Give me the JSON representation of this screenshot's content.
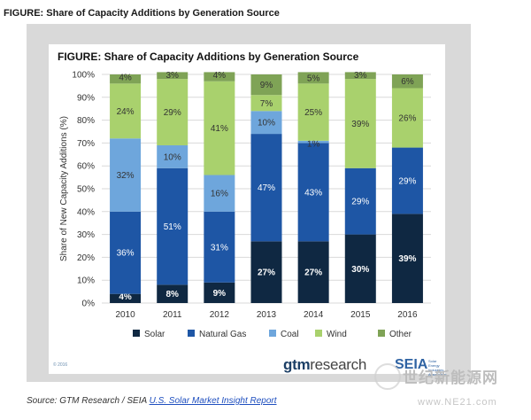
{
  "page": {
    "outer_title": "FIGURE: Share of Capacity Additions by Generation Source",
    "copyright": "© 2016",
    "brands": {
      "gtm_prefix": "gtm",
      "gtm_suffix": "research",
      "seia": "SEIA",
      "seia_sub": "Solar Energy Industries Association"
    },
    "source_prefix": "Source: GTM Research / SEIA ",
    "source_link": "U.S. Solar Market Insight Report",
    "watermark_text": "世纪新能源网",
    "watermark_url": "www.NE21.com"
  },
  "colors": {
    "Solar": "#0f2842",
    "Natural Gas": "#1e56a5",
    "Coal": "#6ea6dc",
    "Wind": "#a9d16d",
    "Other": "#7fa356"
  },
  "chart_data": {
    "type": "bar",
    "stacked": true,
    "title": "FIGURE: Share of Capacity Additions by Generation Source",
    "xlabel": "",
    "ylabel": "Share of New Capacity Additions (%)",
    "ylim": [
      0,
      100
    ],
    "yticks": [
      "0%",
      "10%",
      "20%",
      "30%",
      "40%",
      "50%",
      "60%",
      "70%",
      "80%",
      "90%",
      "100%"
    ],
    "categories": [
      "2010",
      "2011",
      "2012",
      "2013",
      "2014",
      "2015",
      "2016"
    ],
    "legend_position": "bottom",
    "grid": true,
    "series": [
      {
        "name": "Solar",
        "values": [
          4,
          8,
          9,
          27,
          27,
          30,
          39
        ],
        "labels": [
          "4%",
          "8%",
          "9%",
          "27%",
          "27%",
          "30%",
          "39%"
        ]
      },
      {
        "name": "Natural Gas",
        "values": [
          36,
          51,
          31,
          47,
          43,
          29,
          29
        ],
        "labels": [
          "36%",
          "51%",
          "31%",
          "47%",
          "43%",
          "29%",
          "29%"
        ]
      },
      {
        "name": "Coal",
        "values": [
          32,
          10,
          16,
          10,
          1,
          0,
          0
        ],
        "labels": [
          "32%",
          "10%",
          "16%",
          "10%",
          "1%",
          "",
          ""
        ]
      },
      {
        "name": "Wind",
        "values": [
          24,
          29,
          41,
          7,
          25,
          39,
          26
        ],
        "labels": [
          "24%",
          "29%",
          "41%",
          "7%",
          "25%",
          "39%",
          "26%"
        ]
      },
      {
        "name": "Other",
        "values": [
          4,
          3,
          4,
          9,
          5,
          3,
          6
        ],
        "labels": [
          "4%",
          "3%",
          "4%",
          "9%",
          "5%",
          "3%",
          "6%"
        ]
      }
    ]
  }
}
